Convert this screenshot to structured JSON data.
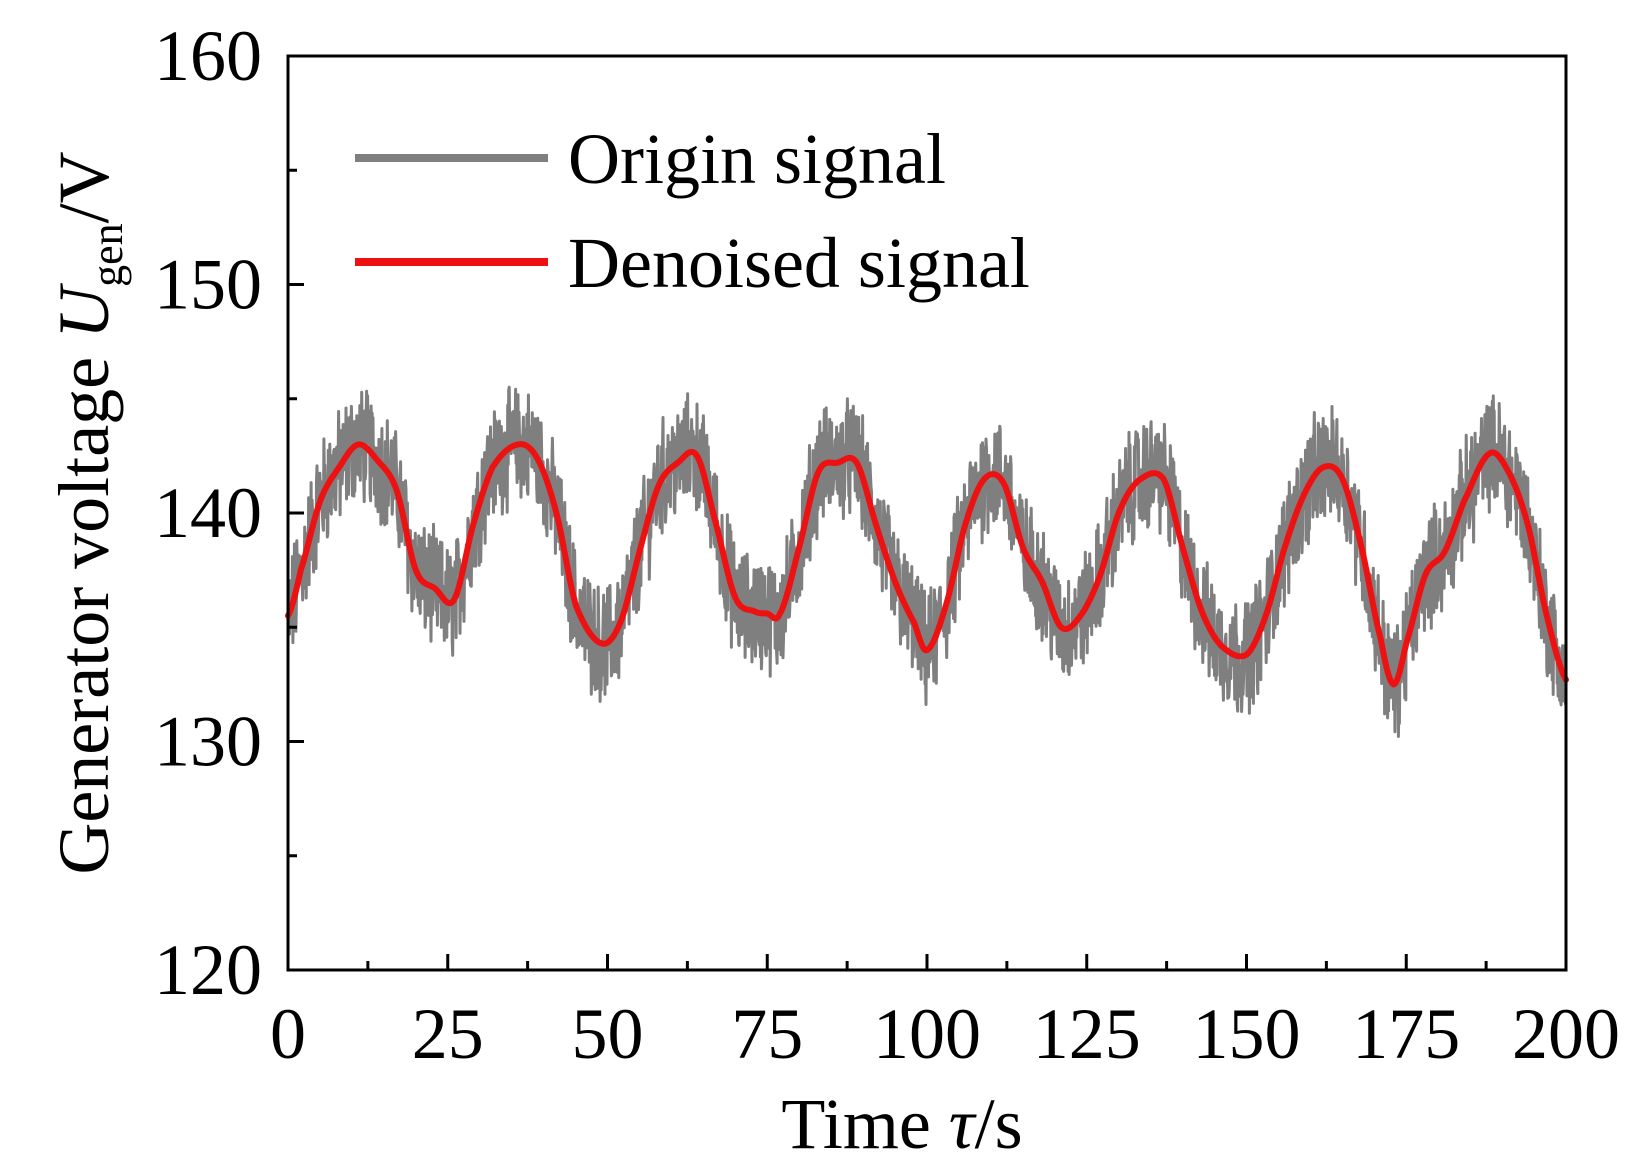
{
  "chart_data": {
    "type": "line",
    "title": "",
    "xlabel": {
      "prefix": "Time ",
      "symbol": "τ",
      "suffix": "/s"
    },
    "ylabel": {
      "prefix": "Generator voltage ",
      "symbol": "U",
      "subscript": "gen",
      "suffix": "/V"
    },
    "xlim": [
      0,
      200
    ],
    "ylim": [
      120,
      160
    ],
    "xticks": [
      0,
      25,
      50,
      75,
      100,
      125,
      150,
      175,
      200
    ],
    "xtick_labels": [
      "0",
      "25",
      "50",
      "75",
      "100",
      "125",
      "150",
      "175",
      "200"
    ],
    "yticks": [
      120,
      130,
      140,
      150,
      160
    ],
    "ytick_labels": [
      "120",
      "130",
      "140",
      "150",
      "160"
    ],
    "y_minor_ticks": [
      125,
      135,
      145,
      155
    ],
    "x_minor_ticks": [
      12.5,
      37.5,
      62.5,
      87.5,
      112.5,
      137.5,
      162.5,
      187.5
    ],
    "grid": false,
    "legend_position": "top-left",
    "series": [
      {
        "name": "Origin signal",
        "color": "#7f7f7f",
        "kind": "noisy band around denoised curve",
        "noise_amplitude": 2.2
      },
      {
        "name": "Denoised signal",
        "color": "#ee1111",
        "x": [
          0,
          2,
          5,
          8,
          11,
          14,
          17,
          20,
          23,
          26,
          29,
          32,
          36,
          39,
          42,
          45,
          49,
          52,
          55,
          58,
          61,
          64,
          67,
          70,
          73,
          75,
          77,
          80,
          83,
          86,
          89,
          92,
          95,
          98,
          100,
          103,
          106,
          109,
          112,
          115,
          118,
          121,
          124,
          127,
          130,
          133,
          137,
          140,
          143,
          146,
          150,
          153,
          156,
          159,
          162,
          165,
          168,
          171,
          173,
          175,
          178,
          181,
          184,
          188,
          191,
          194,
          197,
          200
        ],
        "values": [
          135.5,
          137.5,
          140.5,
          142.0,
          143.0,
          142.3,
          141.0,
          137.5,
          136.7,
          136.2,
          139.5,
          142.0,
          143.0,
          142.4,
          140.0,
          136.0,
          134.3,
          135.2,
          138.3,
          141.2,
          142.2,
          142.5,
          139.5,
          136.3,
          135.7,
          135.6,
          135.6,
          138.5,
          141.8,
          142.2,
          142.2,
          139.5,
          137.0,
          135.2,
          134.0,
          136.0,
          139.5,
          141.5,
          141.3,
          138.5,
          137.0,
          135.0,
          135.5,
          137.2,
          140.0,
          141.4,
          141.5,
          138.5,
          135.7,
          134.2,
          133.8,
          135.5,
          138.5,
          140.8,
          142.0,
          141.5,
          138.5,
          134.5,
          132.5,
          134.3,
          137.3,
          138.3,
          140.5,
          142.6,
          141.8,
          139.5,
          135.5,
          132.7
        ]
      }
    ]
  }
}
